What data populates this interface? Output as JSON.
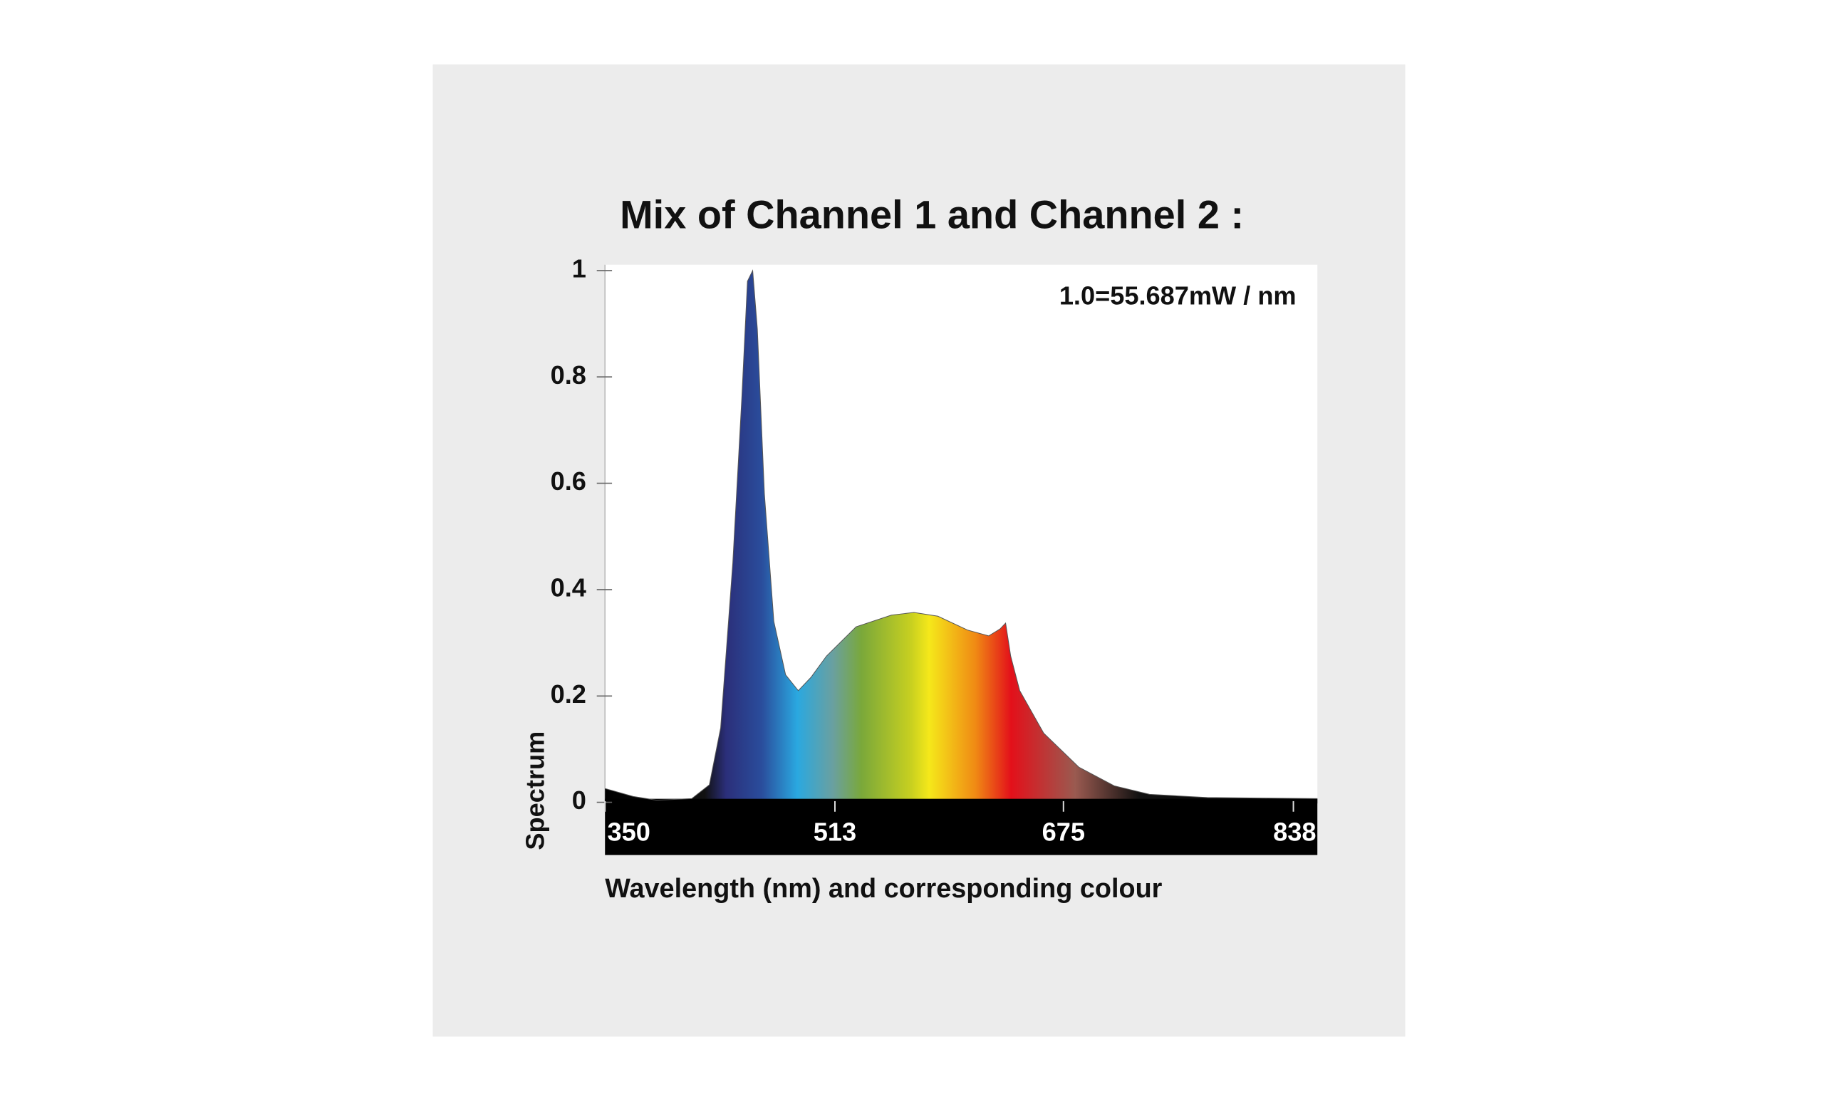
{
  "chart_data": {
    "type": "area",
    "title": "Mix of Channel 1 and Channel 2 :",
    "annotation": "1.0=55.687mW / nm",
    "x_label": "Wavelength (nm) and corresponding colour",
    "y_label": "Spectrum",
    "x": [
      350,
      370,
      386.6,
      411.5,
      424,
      432,
      440.6,
      447,
      451,
      454.7,
      458,
      463,
      469.7,
      478,
      487,
      496,
      507,
      528,
      553,
      569,
      586,
      607,
      622,
      630,
      634,
      637.6,
      644,
      661,
      686,
      711,
      736,
      777,
      855
    ],
    "values": [
      0.026,
      0.011,
      0.004,
      0.007,
      0.033,
      0.14,
      0.45,
      0.76,
      0.98,
      1.0,
      0.89,
      0.58,
      0.34,
      0.24,
      0.21,
      0.235,
      0.275,
      0.33,
      0.352,
      0.357,
      0.35,
      0.324,
      0.313,
      0.326,
      0.337,
      0.275,
      0.21,
      0.13,
      0.066,
      0.031,
      0.015,
      0.009,
      0.007
    ],
    "xlim": [
      350,
      855
    ],
    "xticks": [
      350,
      513,
      675,
      838
    ],
    "ylim": [
      0,
      1
    ],
    "yticks": [
      0,
      0.2,
      0.4,
      0.6,
      0.8,
      1
    ]
  }
}
